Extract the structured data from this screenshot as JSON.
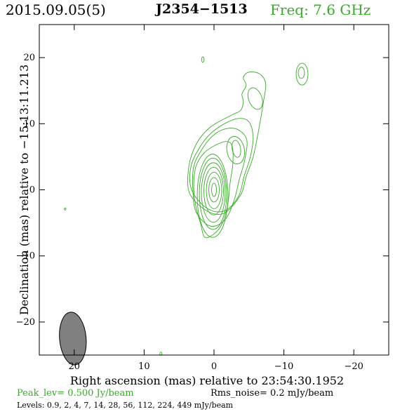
{
  "header": {
    "date": "2015.09.05(5)",
    "source": "J2354−1513",
    "freq": "Freq: 7.6 GHz"
  },
  "colors": {
    "contour": "#3aaa2a",
    "beam": "#808080"
  },
  "chart_data": {
    "type": "contour",
    "xlabel": "Right ascension (mas) relative to 23:54:30.1952",
    "ylabel": "Declination (mas) relative to −15:13:11.213",
    "xlim": [
      25,
      -25
    ],
    "ylim": [
      -25,
      25
    ],
    "xticks": [
      20,
      10,
      0,
      -10,
      -20
    ],
    "xtick_labels": [
      "20",
      "10",
      "0",
      "−10",
      "−20"
    ],
    "yticks": [
      20,
      10,
      0,
      -10,
      -20
    ],
    "ytick_labels": [
      "20",
      "10",
      "0",
      "−10",
      "−20"
    ],
    "beam": {
      "x": 20.2,
      "y": -22.5,
      "major_mas": 4.0,
      "minor_mas": 1.9,
      "pa_deg": -5
    },
    "core_contours": [
      {
        "x": 0.0,
        "y": 0.0,
        "a": 0.35,
        "b": 1.0,
        "pa": 0
      },
      {
        "x": 0.0,
        "y": 0.0,
        "a": 0.75,
        "b": 1.85,
        "pa": 0
      },
      {
        "x": 0.0,
        "y": -0.1,
        "a": 1.1,
        "b": 2.75,
        "pa": 0
      },
      {
        "x": 0.05,
        "y": -0.2,
        "a": 1.4,
        "b": 3.6,
        "pa": 0
      },
      {
        "x": 0.1,
        "y": -0.4,
        "a": 1.7,
        "b": 4.5,
        "pa": 0
      },
      {
        "x": 0.15,
        "y": -0.6,
        "a": 1.95,
        "b": 5.4,
        "pa": 0
      },
      {
        "x": 0.2,
        "y": -0.9,
        "a": 2.2,
        "b": 6.3,
        "pa": 0
      }
    ],
    "jet_contours": [
      [
        [
          1.3,
          -7.2
        ],
        [
          1.9,
          -5.2
        ],
        [
          2.6,
          -2.5
        ],
        [
          2.9,
          0.5
        ],
        [
          2.6,
          3.5
        ],
        [
          1.4,
          5.6
        ],
        [
          -0.3,
          6.8
        ],
        [
          -1.8,
          7.3
        ],
        [
          -2.6,
          6.6
        ],
        [
          -2.7,
          4.0
        ],
        [
          -2.3,
          1.0
        ],
        [
          -2.0,
          -2.0
        ],
        [
          -1.3,
          -4.8
        ],
        [
          -0.2,
          -6.5
        ],
        [
          1.3,
          -7.2
        ]
      ],
      [
        [
          2.5,
          -3.5
        ],
        [
          3.0,
          -0.5
        ],
        [
          2.9,
          3.5
        ],
        [
          1.5,
          6.5
        ],
        [
          -0.2,
          8.5
        ],
        [
          -2.0,
          9.3
        ],
        [
          -3.6,
          9.0
        ],
        [
          -4.7,
          7.5
        ],
        [
          -4.4,
          4.5
        ],
        [
          -3.6,
          1.5
        ],
        [
          -2.9,
          -1.5
        ],
        [
          -1.6,
          -4.5
        ],
        [
          0.5,
          -5.5
        ],
        [
          2.5,
          -3.5
        ]
      ],
      [
        [
          3.2,
          0.0
        ],
        [
          3.3,
          3.5
        ],
        [
          2.0,
          6.5
        ],
        [
          0.5,
          8.5
        ],
        [
          -1.5,
          10.0
        ],
        [
          -3.5,
          10.8
        ],
        [
          -5.0,
          10.3
        ],
        [
          -5.6,
          8.0
        ],
        [
          -5.2,
          5.0
        ],
        [
          -4.3,
          2.0
        ],
        [
          -3.5,
          -1.0
        ],
        [
          -1.5,
          -3.2
        ],
        [
          1.0,
          -2.8
        ],
        [
          3.2,
          0.0
        ]
      ],
      [
        [
          3.5,
          -0.5
        ],
        [
          3.6,
          3.5
        ],
        [
          2.5,
          7.0
        ],
        [
          0.5,
          9.5
        ],
        [
          -2.5,
          11.3
        ],
        [
          -3.8,
          12.0
        ],
        [
          -4.2,
          13.3
        ],
        [
          -4.0,
          14.5
        ],
        [
          -4.6,
          15.8
        ],
        [
          -4.2,
          17.0
        ],
        [
          -5.0,
          17.8
        ],
        [
          -6.6,
          17.5
        ],
        [
          -7.4,
          16.0
        ],
        [
          -7.1,
          13.5
        ],
        [
          -6.8,
          11.5
        ],
        [
          -6.3,
          8.5
        ],
        [
          -5.6,
          5.0
        ],
        [
          -4.6,
          2.0
        ],
        [
          -3.8,
          -0.8
        ],
        [
          -1.5,
          -3.5
        ],
        [
          1.0,
          -3.2
        ],
        [
          3.5,
          -0.5
        ]
      ]
    ],
    "knot_contours": [
      {
        "x": -3.2,
        "y": 6.2,
        "a": 0.6,
        "b": 1.3,
        "pa": -10
      },
      {
        "x": -3.1,
        "y": 6.0,
        "a": 1.25,
        "b": 2.1,
        "pa": -10
      },
      {
        "x": -5.9,
        "y": 13.8,
        "a": 0.95,
        "b": 1.7,
        "pa": -20
      },
      {
        "x": -12.5,
        "y": 17.7,
        "a": 0.45,
        "b": 0.85,
        "pa": 0
      },
      {
        "x": -12.6,
        "y": 17.5,
        "a": 0.85,
        "b": 1.65,
        "pa": 0
      },
      {
        "x": 1.6,
        "y": 19.7,
        "a": 0.18,
        "b": 0.42,
        "pa": 0
      },
      {
        "x": 21.3,
        "y": -2.9,
        "a": 0.12,
        "b": 0.15,
        "pa": 0
      },
      {
        "x": 7.6,
        "y": -24.8,
        "a": 0.15,
        "b": 0.25,
        "pa": 0
      }
    ]
  },
  "footer": {
    "peak": "Peak_lev=  0.500 Jy/beam",
    "rms": "Rms_noise=  0.2 mJy/beam",
    "levels": "Levels: 0.9,   2,   4,   7,  14,  28,  56, 112, 224, 449 mJy/beam"
  }
}
